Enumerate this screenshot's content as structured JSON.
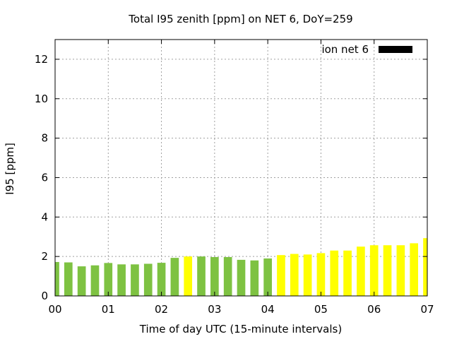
{
  "chart_data": {
    "type": "bar",
    "title": "Total I95 zenith [ppm] on NET 6, DoY=259",
    "xlabel": "Time of day UTC (15-minute intervals)",
    "ylabel": "I95 [ppm]",
    "x_tick_labels": [
      "00",
      "01",
      "02",
      "03",
      "04",
      "05",
      "06",
      "07"
    ],
    "y_ticks": [
      0,
      2,
      4,
      6,
      8,
      10,
      12
    ],
    "ylim": [
      0,
      13
    ],
    "xlim_hours": [
      0,
      7
    ],
    "interval_minutes": 15,
    "grid": true,
    "legend": {
      "position": "top-right",
      "entries": [
        {
          "name": "ion net 6",
          "color": "#000000"
        }
      ]
    },
    "colors": {
      "green": "#7ec242",
      "yellow": "#ffff00"
    },
    "bars": [
      {
        "time": "00:00",
        "value": 1.72,
        "color": "green"
      },
      {
        "time": "00:15",
        "value": 1.7,
        "color": "green"
      },
      {
        "time": "00:30",
        "value": 1.5,
        "color": "green"
      },
      {
        "time": "00:45",
        "value": 1.55,
        "color": "green"
      },
      {
        "time": "01:00",
        "value": 1.67,
        "color": "green"
      },
      {
        "time": "01:15",
        "value": 1.6,
        "color": "green"
      },
      {
        "time": "01:30",
        "value": 1.6,
        "color": "green"
      },
      {
        "time": "01:45",
        "value": 1.63,
        "color": "green"
      },
      {
        "time": "02:00",
        "value": 1.68,
        "color": "green"
      },
      {
        "time": "02:15",
        "value": 1.93,
        "color": "green"
      },
      {
        "time": "02:30",
        "value": 2.0,
        "color": "yellow"
      },
      {
        "time": "02:45",
        "value": 2.0,
        "color": "green"
      },
      {
        "time": "03:00",
        "value": 1.97,
        "color": "green"
      },
      {
        "time": "03:15",
        "value": 1.97,
        "color": "green"
      },
      {
        "time": "03:30",
        "value": 1.83,
        "color": "green"
      },
      {
        "time": "03:45",
        "value": 1.8,
        "color": "green"
      },
      {
        "time": "04:00",
        "value": 1.9,
        "color": "green"
      },
      {
        "time": "04:15",
        "value": 2.07,
        "color": "yellow"
      },
      {
        "time": "04:30",
        "value": 2.13,
        "color": "yellow"
      },
      {
        "time": "04:45",
        "value": 2.1,
        "color": "yellow"
      },
      {
        "time": "05:00",
        "value": 2.17,
        "color": "yellow"
      },
      {
        "time": "05:15",
        "value": 2.3,
        "color": "yellow"
      },
      {
        "time": "05:30",
        "value": 2.3,
        "color": "yellow"
      },
      {
        "time": "05:45",
        "value": 2.5,
        "color": "yellow"
      },
      {
        "time": "06:00",
        "value": 2.57,
        "color": "yellow"
      },
      {
        "time": "06:15",
        "value": 2.57,
        "color": "yellow"
      },
      {
        "time": "06:30",
        "value": 2.57,
        "color": "yellow"
      },
      {
        "time": "06:45",
        "value": 2.67,
        "color": "yellow"
      },
      {
        "time": "07:00",
        "value": 2.93,
        "color": "yellow"
      }
    ]
  }
}
